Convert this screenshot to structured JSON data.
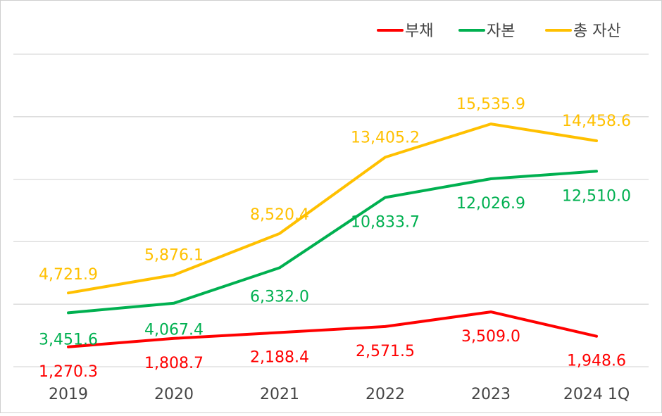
{
  "chart_data": {
    "type": "line",
    "categories": [
      "2019",
      "2020",
      "2021",
      "2022",
      "2023",
      "2024 1Q"
    ],
    "series": [
      {
        "name": "부채",
        "color": "#ff0000",
        "values": [
          1270.3,
          1808.7,
          2188.4,
          2571.5,
          3509.0,
          1948.6
        ],
        "labels": [
          "1,270.3",
          "1,808.7",
          "2,188.4",
          "2,571.5",
          "3,509.0",
          "1,948.6"
        ]
      },
      {
        "name": "자본",
        "color": "#00b050",
        "values": [
          3451.6,
          4067.4,
          6332.0,
          10833.7,
          12026.9,
          12510.0
        ],
        "labels": [
          "3,451.6",
          "4,067.4",
          "6,332.0",
          "10,833.7",
          "12,026.9",
          "12,510.0"
        ]
      },
      {
        "name": "총 자산",
        "color": "#ffc000",
        "values": [
          4721.9,
          5876.1,
          8520.4,
          13405.2,
          15535.9,
          14458.6
        ],
        "labels": [
          "4,721.9",
          "5,876.1",
          "8,520.4",
          "13,405.2",
          "15,535.9",
          "14,458.6"
        ]
      }
    ],
    "ylim": [
      0,
      20000
    ],
    "grid": true,
    "legend": "top-right",
    "xlabel": "",
    "ylabel": ""
  }
}
